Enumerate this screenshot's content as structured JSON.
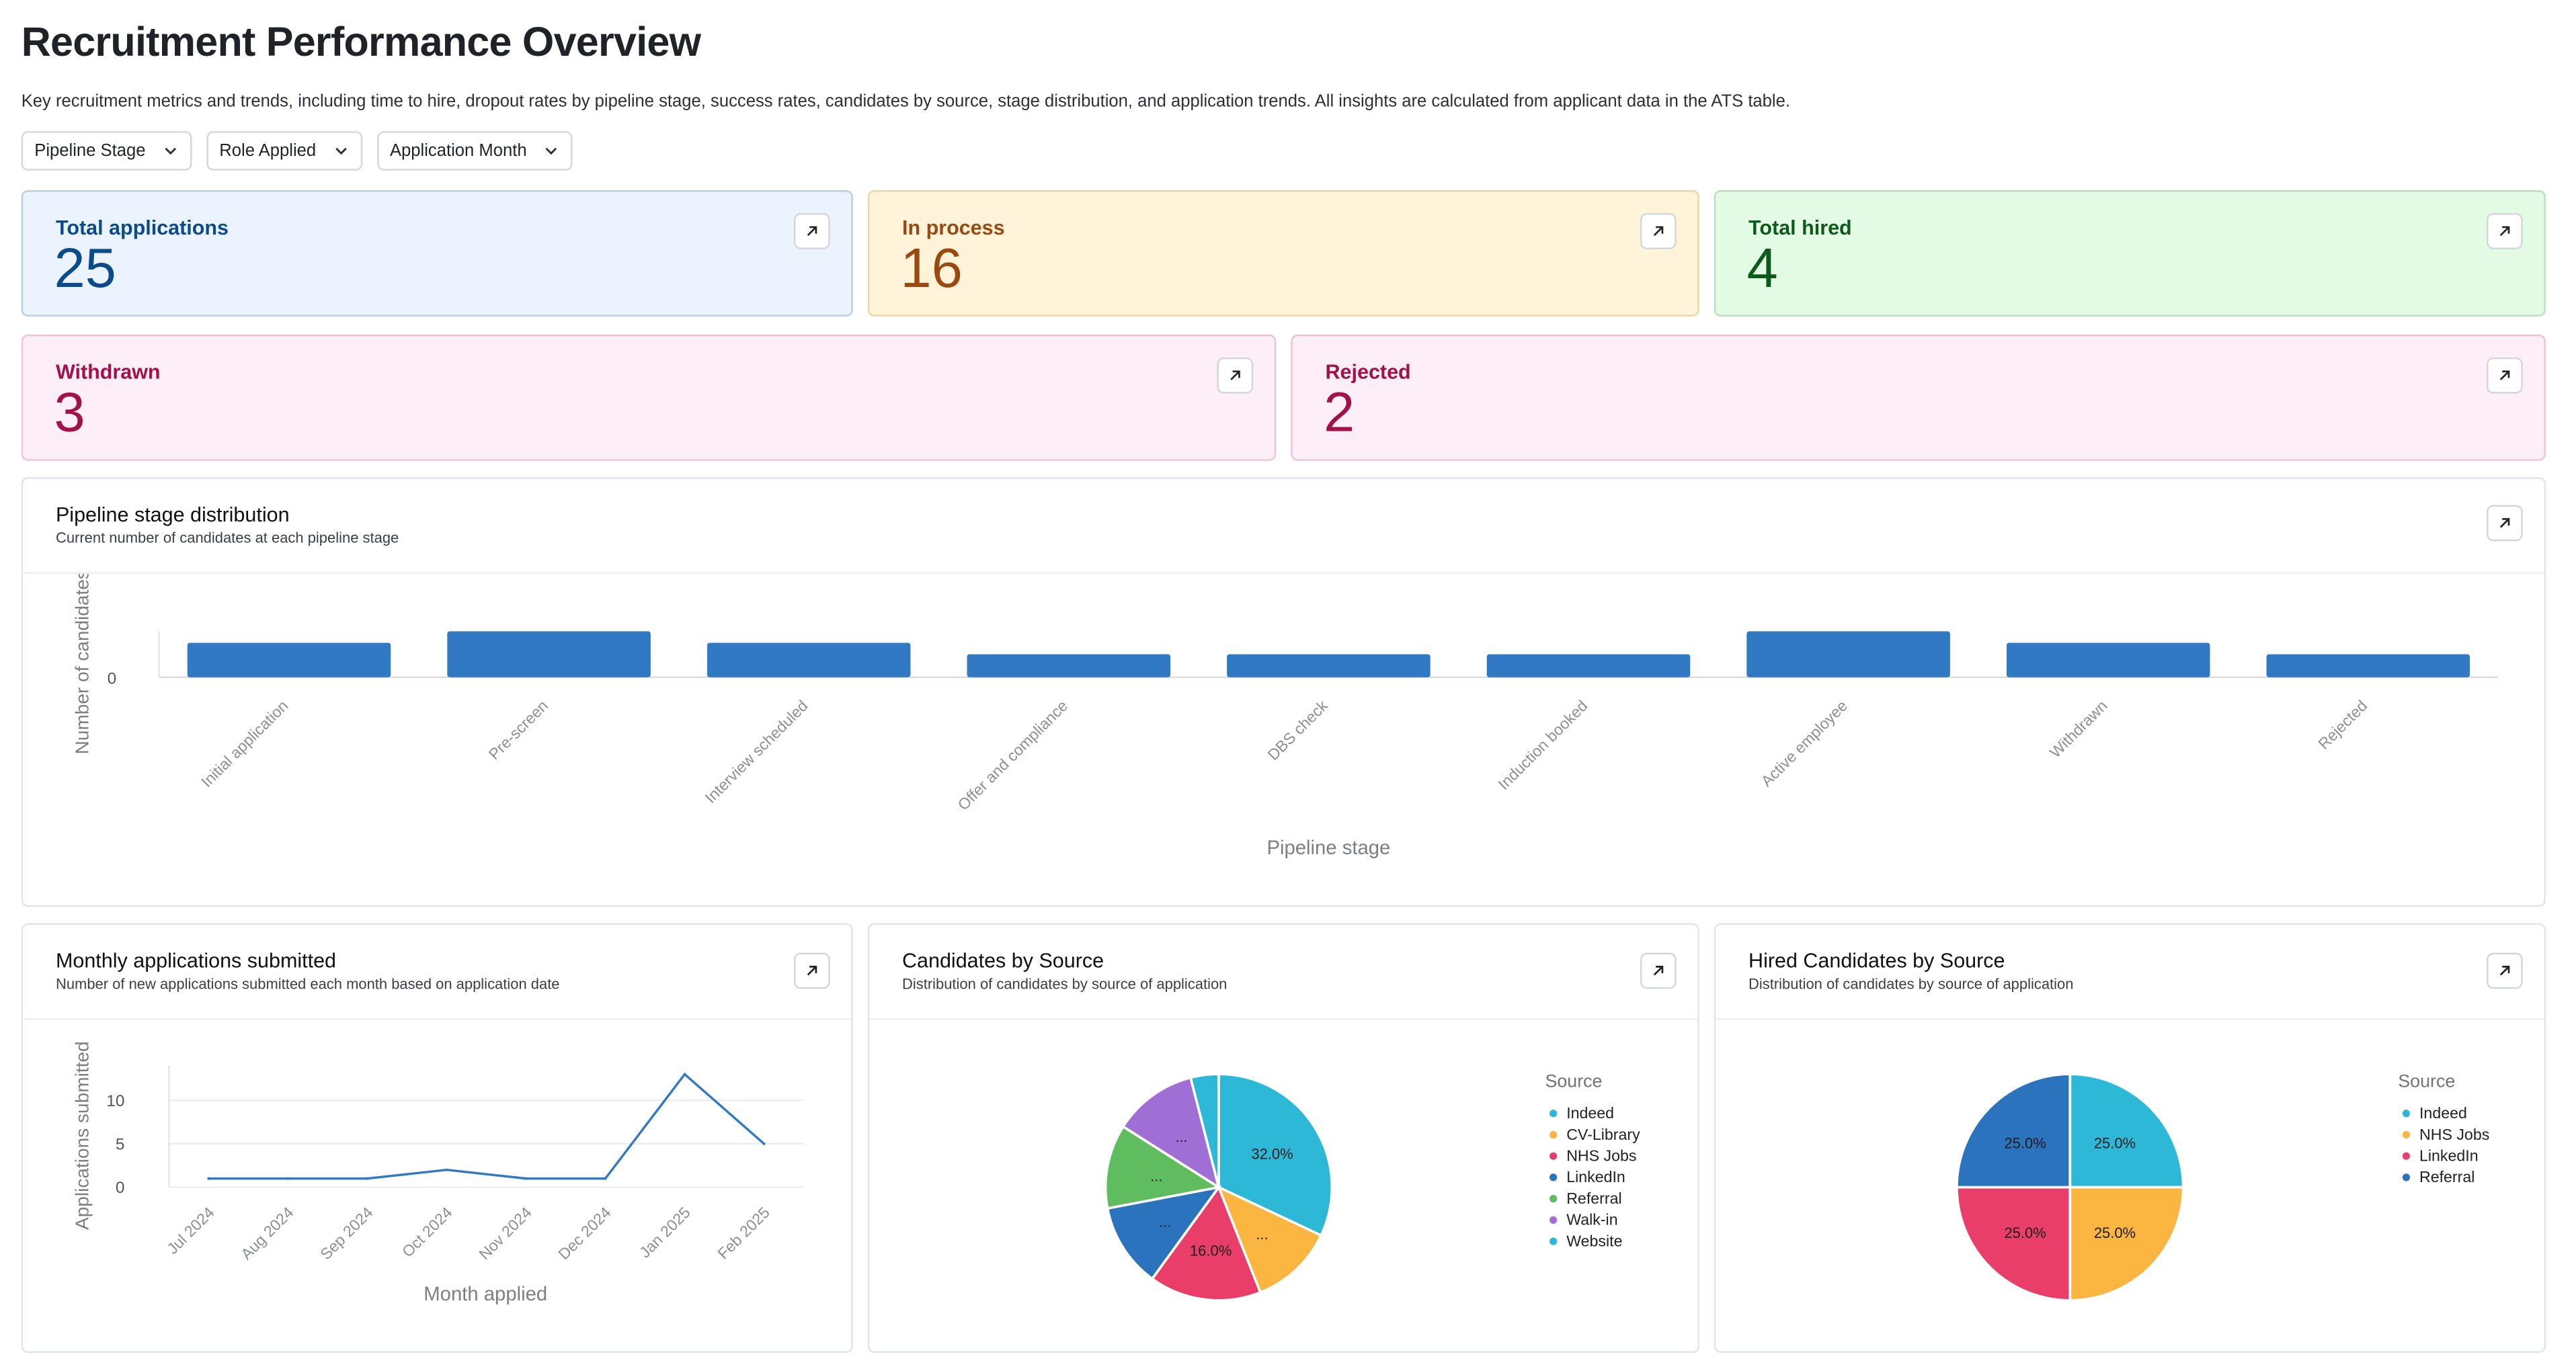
{
  "page": {
    "title": "Recruitment Performance Overview",
    "description": "Key recruitment metrics and trends, including time to hire, dropout rates by pipeline stage, success rates, candidates by source, stage distribution, and application trends. All insights are calculated from applicant data in the ATS table."
  },
  "filters": [
    {
      "label": "Pipeline Stage"
    },
    {
      "label": "Role Applied"
    },
    {
      "label": "Application Month"
    }
  ],
  "kpis": [
    {
      "label": "Total applications",
      "value": "25",
      "bg": "#ebf3fe",
      "border": "#b6cfe8",
      "color": "#0b4a8b"
    },
    {
      "label": "In process",
      "value": "16",
      "bg": "#fff3da",
      "border": "#ecd6a6",
      "color": "#9a4a10"
    },
    {
      "label": "Total hired",
      "value": "4",
      "bg": "#e3fae4",
      "border": "#b9e0bc",
      "color": "#0e5a1b"
    },
    {
      "label": "Withdrawn",
      "value": "3",
      "bg": "#fdeef7",
      "border": "#ecc3d7",
      "color": "#a3104a"
    },
    {
      "label": "Rejected",
      "value": "2",
      "bg": "#fdeef7",
      "border": "#ecc3d7",
      "color": "#a3104a"
    }
  ],
  "pipeline_card": {
    "title": "Pipeline stage distribution",
    "subtitle": "Current number of candidates at each pipeline stage"
  },
  "monthly_card": {
    "title": "Monthly applications submitted",
    "subtitle": "Number of new applications submitted each month based on application date"
  },
  "source_card": {
    "title": "Candidates by Source",
    "subtitle": "Distribution of candidates by source of application",
    "legend_title": "Source"
  },
  "hired_card": {
    "title": "Hired Candidates by Source",
    "subtitle": "Distribution of candidates by source of application",
    "legend_title": "Source"
  },
  "chart_data": [
    {
      "id": "pipeline",
      "type": "bar",
      "title": "Pipeline stage distribution",
      "xlabel": "Pipeline stage",
      "ylabel": "Number of candidates",
      "categories": [
        "Initial application",
        "Pre-screen",
        "Interview scheduled",
        "Offer and compliance",
        "DBS check",
        "Induction booked",
        "Active employee",
        "Withdrawn",
        "Rejected"
      ],
      "values": [
        3,
        4,
        3,
        2,
        2,
        2,
        4,
        3,
        2
      ],
      "yticks": [
        "0"
      ],
      "color": "#3179c2",
      "grid": false
    },
    {
      "id": "monthly",
      "type": "line",
      "title": "Monthly applications submitted",
      "xlabel": "Month applied",
      "ylabel": "Applications submitted",
      "categories": [
        "Jul 2024",
        "Aug 2024",
        "Sep 2024",
        "Oct 2024",
        "Nov 2024",
        "Dec 2024",
        "Jan 2025",
        "Feb 2025"
      ],
      "values": [
        1,
        1,
        1,
        2,
        1,
        1,
        13,
        5
      ],
      "yticks": [
        0,
        5,
        10
      ],
      "ylim": [
        0,
        14
      ],
      "color": "#3179c2",
      "grid": true
    },
    {
      "id": "source",
      "type": "pie",
      "title": "Candidates by Source",
      "legend_title": "Source",
      "legend_position": "right",
      "slices": [
        {
          "name": "Indeed",
          "value": 32,
          "label": "32.0%",
          "color": "#2eb8d8"
        },
        {
          "name": "CV-Library",
          "value": 12,
          "label": "...",
          "color": "#fbb541"
        },
        {
          "name": "NHS Jobs",
          "value": 16,
          "label": "16.0%",
          "color": "#ea3e6a"
        },
        {
          "name": "LinkedIn",
          "value": 12,
          "label": "...",
          "color": "#2c73be"
        },
        {
          "name": "Referral",
          "value": 12,
          "label": "...",
          "color": "#5fbd5f"
        },
        {
          "name": "Walk-in",
          "value": 12,
          "label": "...",
          "color": "#a06fd6"
        },
        {
          "name": "Website",
          "value": 4,
          "label": "",
          "color": "#2eb8d8"
        }
      ]
    },
    {
      "id": "hired",
      "type": "pie",
      "title": "Hired Candidates by Source",
      "legend_title": "Source",
      "legend_position": "right",
      "slices": [
        {
          "name": "Indeed",
          "value": 25,
          "label": "25.0%",
          "color": "#2eb8d8"
        },
        {
          "name": "NHS Jobs",
          "value": 25,
          "label": "25.0%",
          "color": "#fbb541"
        },
        {
          "name": "LinkedIn",
          "value": 25,
          "label": "25.0%",
          "color": "#ea3e6a"
        },
        {
          "name": "Referral",
          "value": 25,
          "label": "25.0%",
          "color": "#2c73be"
        }
      ]
    }
  ]
}
